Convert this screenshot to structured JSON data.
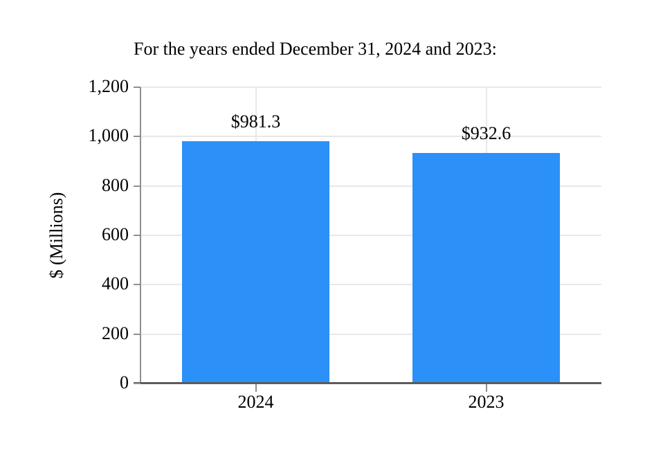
{
  "page": {
    "background_color": "#ffffff",
    "text_color": "#000000"
  },
  "chart_data": {
    "type": "bar",
    "title": "For the years ended December 31, 2024 and 2023:",
    "categories": [
      "2024",
      "2023"
    ],
    "values": [
      981.3,
      932.6
    ],
    "value_labels": [
      "$981.3",
      "$932.6"
    ],
    "xlabel": "",
    "ylabel": "$ (Millions)",
    "ylim": [
      0,
      1200
    ],
    "yticks": [
      0,
      200,
      400,
      600,
      800,
      1000,
      1200
    ],
    "ytick_labels": [
      "0",
      "200",
      "400",
      "600",
      "800",
      "1,000",
      "1,200"
    ],
    "grid": true,
    "legend_position": "none",
    "bar_color": "#2B90F8",
    "gridline_color": "#e8e8e8",
    "axis_line_color": "#8f8f8f",
    "baseline_color": "#5c5c5c"
  }
}
